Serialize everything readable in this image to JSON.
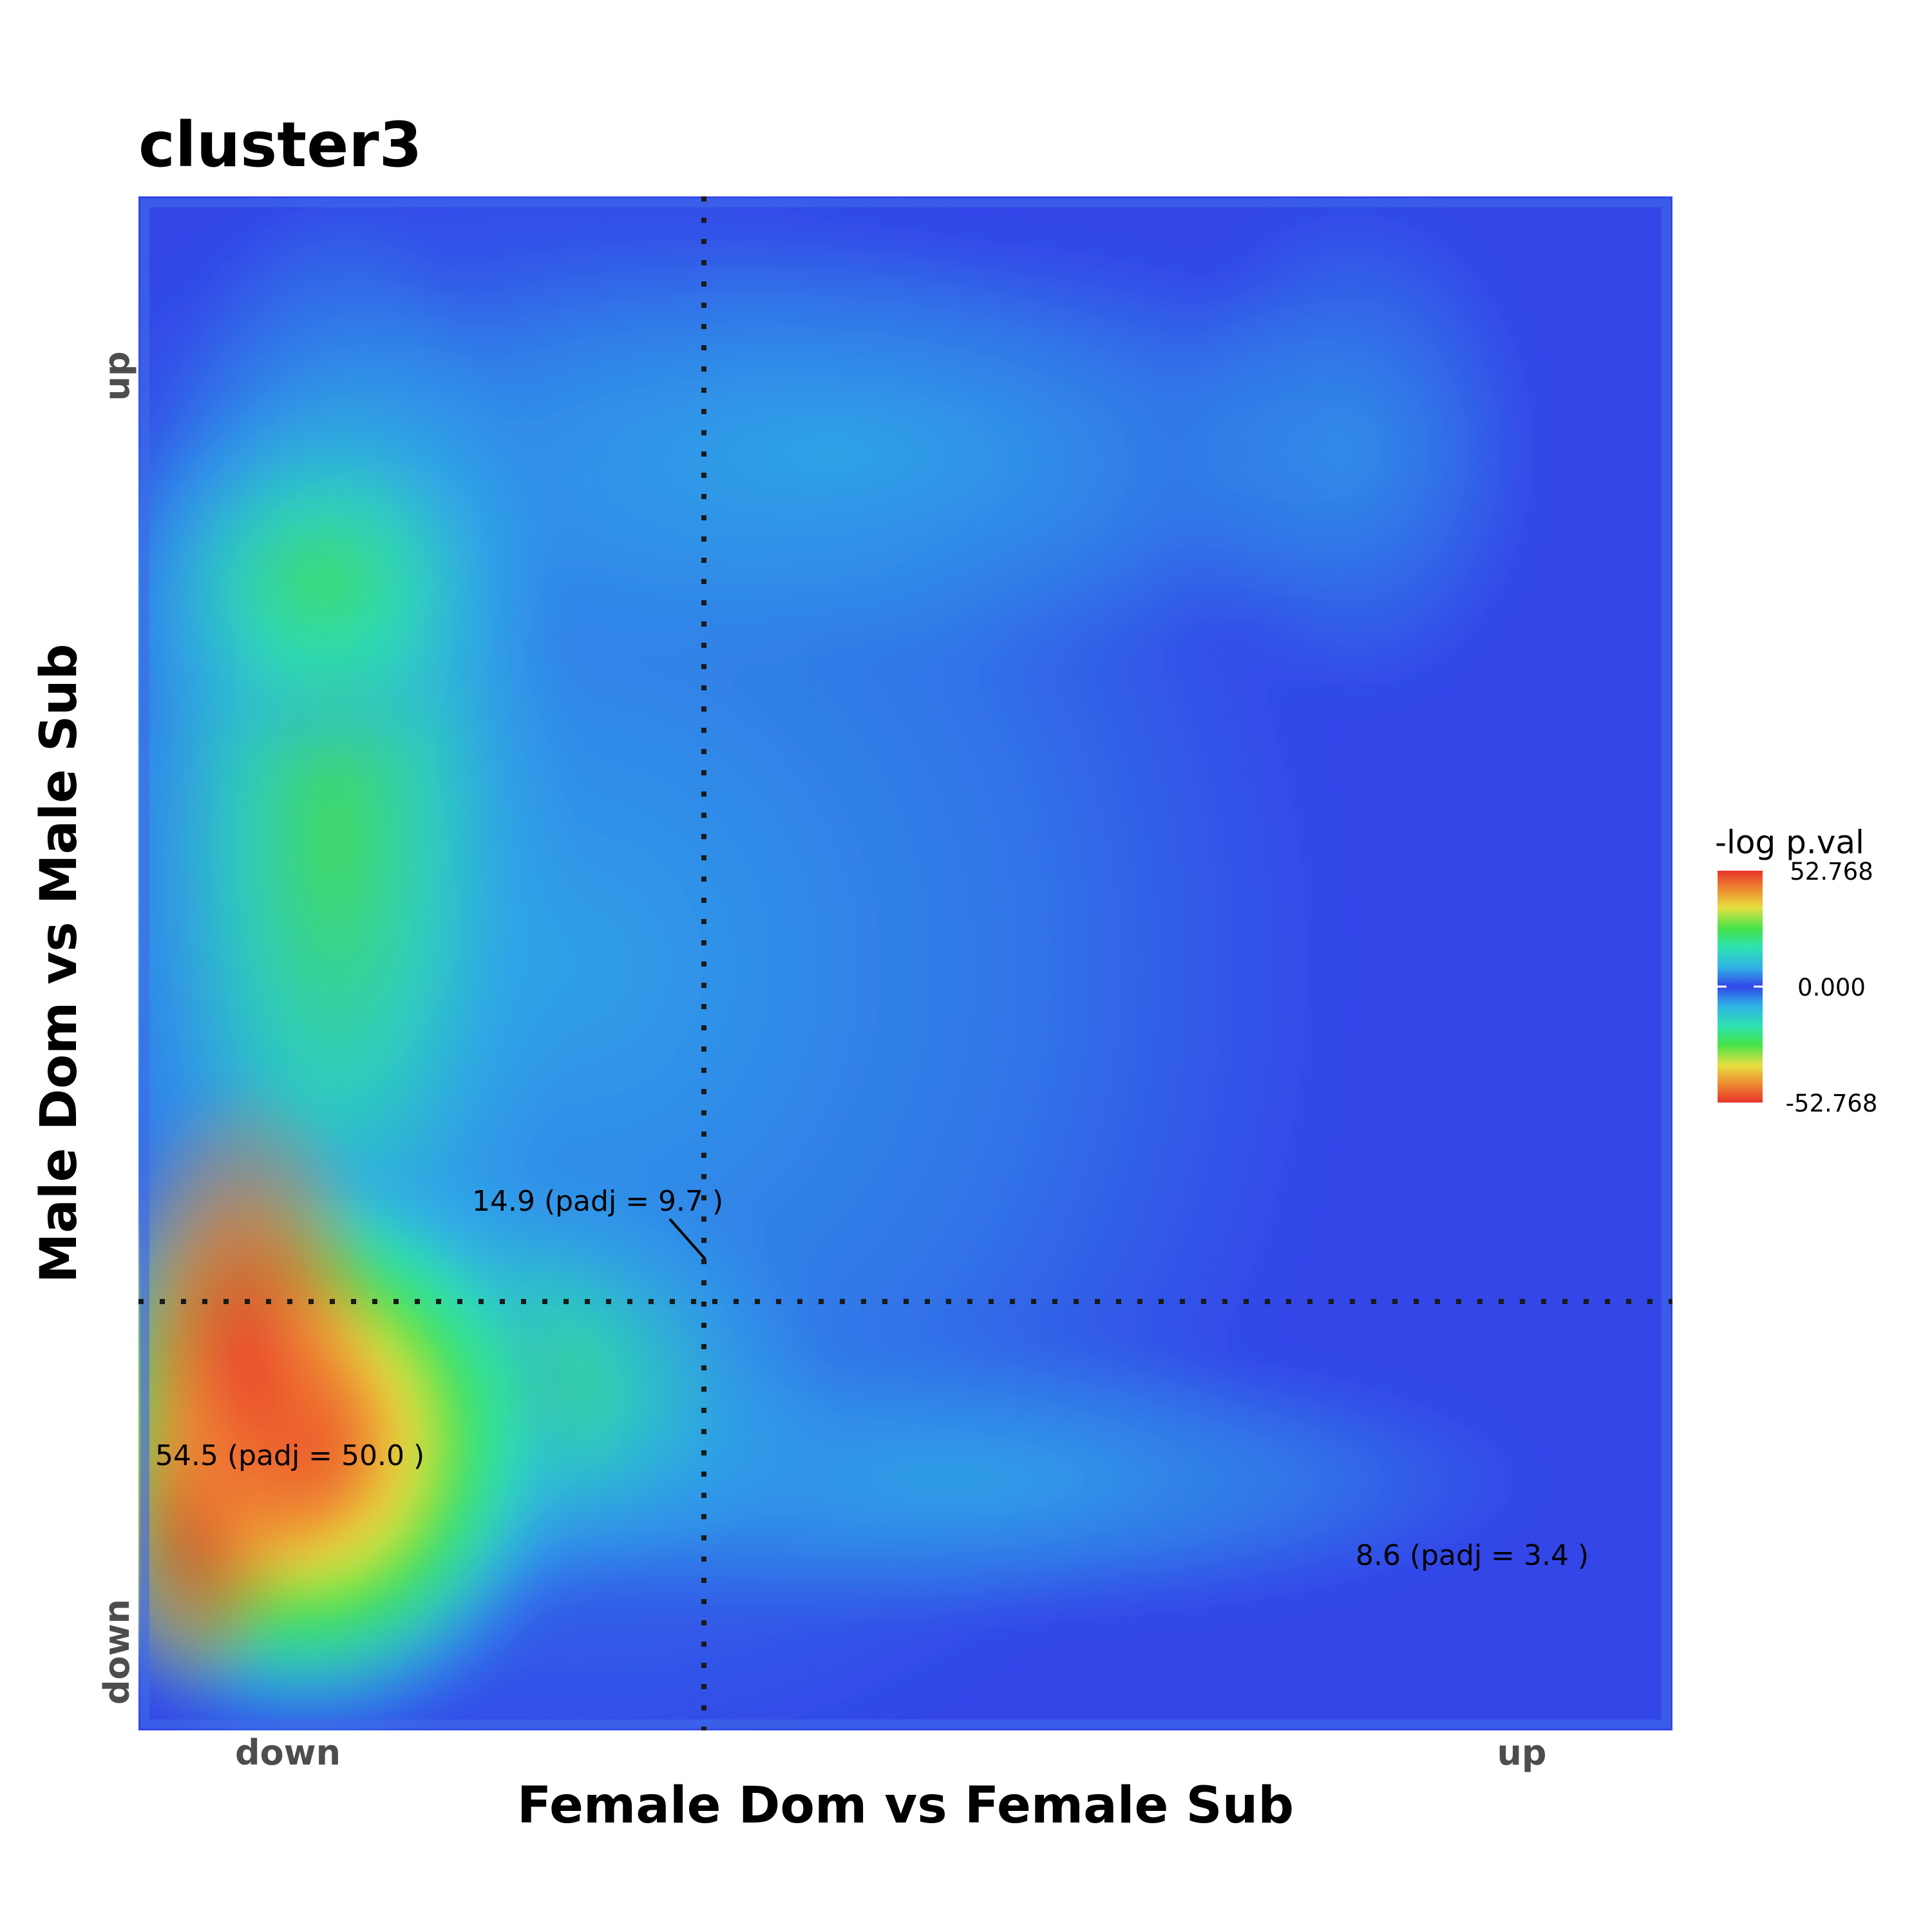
{
  "chart_data": {
    "type": "heatmap",
    "title": "cluster3",
    "xlabel": "Female Dom vs Female Sub",
    "ylabel": "Male Dom vs Male Sub",
    "x_ticks": [
      "down",
      "up"
    ],
    "y_ticks": [
      "down",
      "up"
    ],
    "legend": {
      "title": "-log p.val",
      "max_label": "52.768",
      "mid_label": "0.000",
      "min_label": "-52.768",
      "range": [
        -52.768,
        52.768
      ],
      "placement": "right"
    },
    "annotations": [
      {
        "text": "14.9 (padj = 9.7 )",
        "quadrant": "center"
      },
      {
        "text": "54.5 (padj = 50.0 )",
        "quadrant": "down-down"
      },
      {
        "text": "8.6 (padj = 3.4 )",
        "quadrant": "up-down"
      }
    ],
    "colors": {
      "low": "#3346e8",
      "cyan": "#2fb0e8",
      "teal": "#2ee3b0",
      "green": "#44e24a",
      "yellow": "#e6e040",
      "orange": "#ee8a30",
      "red": "#e8332c",
      "divider": "#1a1a1a"
    },
    "hotspots": [
      {
        "x": 0.07,
        "y": 0.85,
        "value": 54.5
      },
      {
        "x": 0.2,
        "y": 0.72,
        "value": 25
      },
      {
        "x": 0.2,
        "y": 0.4,
        "value": 16
      },
      {
        "x": 0.9,
        "y": 0.88,
        "value": 8.6
      }
    ]
  }
}
